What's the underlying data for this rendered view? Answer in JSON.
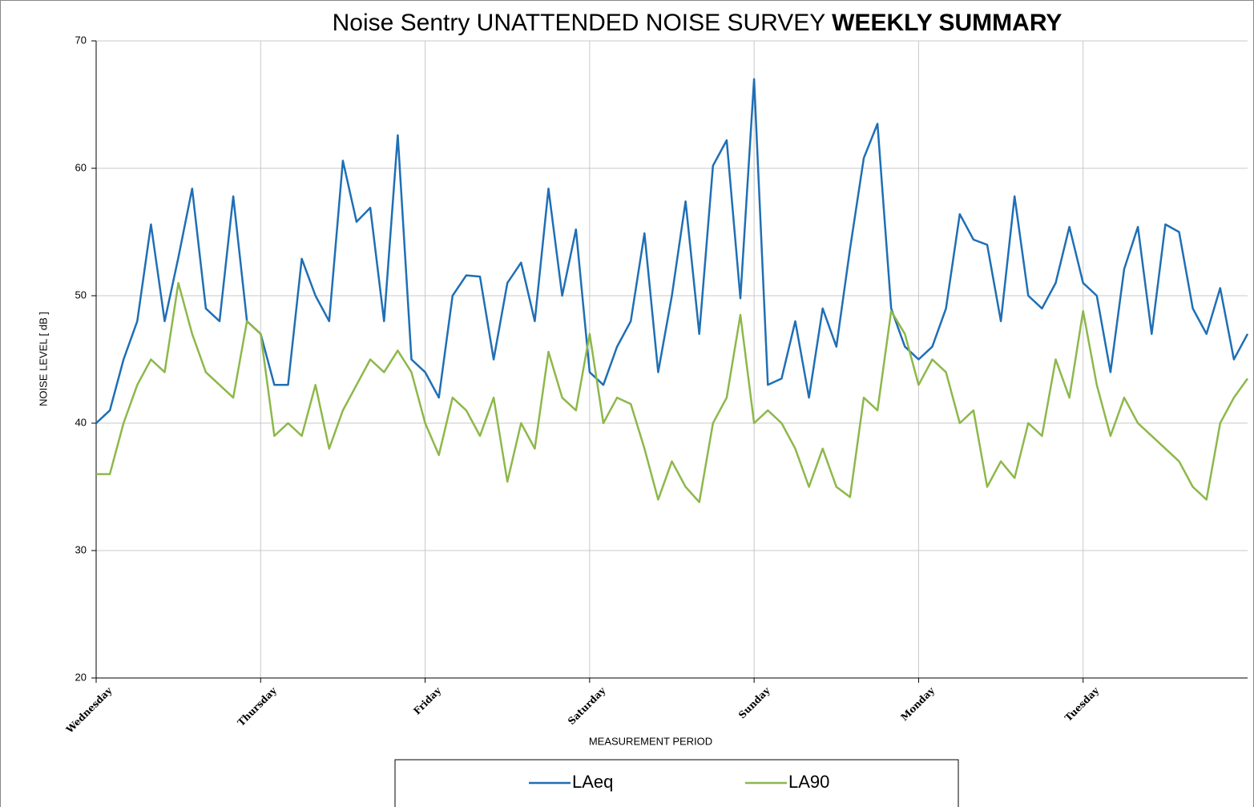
{
  "chart_data": {
    "type": "line",
    "title": "Noise Sentry UNATTENDED NOISE SURVEY",
    "title_emphasis": "WEEKLY SUMMARY",
    "x_label": "MEASUREMENT PERIOD",
    "y_label": "NOISE LEVEL  [ dB ]",
    "categories": [
      "Wednesday",
      null,
      null,
      null,
      null,
      null,
      null,
      null,
      null,
      null,
      null,
      null,
      "Thursday",
      null,
      null,
      null,
      null,
      null,
      null,
      null,
      null,
      null,
      null,
      null,
      "Friday",
      null,
      null,
      null,
      null,
      null,
      null,
      null,
      null,
      null,
      null,
      null,
      "Saturday",
      null,
      null,
      null,
      null,
      null,
      null,
      null,
      null,
      null,
      null,
      null,
      "Sunday",
      null,
      null,
      null,
      null,
      null,
      null,
      null,
      null,
      null,
      null,
      null,
      "Monday",
      null,
      null,
      null,
      null,
      null,
      null,
      null,
      null,
      null,
      null,
      null,
      "Tuesday",
      null,
      null,
      null,
      null,
      null,
      null,
      null,
      null,
      null,
      null,
      null,
      null
    ],
    "series": [
      {
        "name": "LAeq",
        "color": "#1f6fb5",
        "values": [
          40,
          41,
          45,
          48,
          55.6,
          48,
          53,
          58.4,
          49,
          48,
          57.8,
          48,
          47,
          43,
          43,
          52.9,
          50,
          48,
          60.6,
          55.8,
          56.9,
          48,
          62.6,
          45,
          44,
          42,
          50,
          51.6,
          51.5,
          45,
          51,
          52.6,
          48,
          58.4,
          50,
          55.2,
          44,
          43,
          46,
          48,
          54.9,
          44,
          50,
          57.4,
          47,
          60.2,
          62.2,
          49.8,
          67,
          43,
          43.5,
          48,
          42,
          49,
          46,
          53.7,
          60.8,
          63.5,
          49,
          46,
          45,
          46,
          49,
          56.4,
          54.4,
          54,
          48,
          57.8,
          50,
          49,
          51,
          55.4,
          51,
          50,
          44,
          52.1,
          55.4,
          47,
          55.6,
          55,
          49,
          47,
          50.6,
          45,
          47
        ]
      },
      {
        "name": "LA90",
        "color": "#8db84a",
        "values": [
          36,
          36,
          40,
          43,
          45,
          44,
          51,
          47,
          44,
          43,
          42,
          48,
          47,
          39,
          40,
          39,
          43,
          38,
          41,
          43,
          45,
          44,
          45.7,
          44,
          40,
          37.5,
          42,
          41,
          39,
          42,
          35.4,
          40,
          38,
          45.6,
          42,
          41,
          47,
          40,
          42,
          41.5,
          38,
          34,
          37,
          35,
          33.8,
          40,
          42,
          48.5,
          40,
          41,
          40,
          38,
          35,
          38,
          35,
          34.2,
          42,
          41,
          48.8,
          47,
          43,
          45,
          44,
          40,
          41,
          35,
          37,
          35.7,
          40,
          39,
          45,
          42,
          48.8,
          43,
          39,
          42,
          40,
          39,
          38,
          37,
          35,
          34,
          40,
          42,
          43.5
        ]
      }
    ],
    "ylim": [
      20,
      70
    ],
    "yticks": [
      20,
      30,
      40,
      50,
      60,
      70
    ],
    "grid": true,
    "legend": "bottom"
  }
}
